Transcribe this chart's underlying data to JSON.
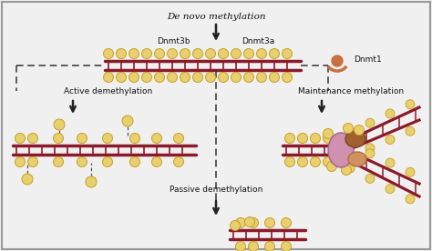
{
  "bg_color": "#f0f0f0",
  "border_color": "#999999",
  "dna_color": "#8b1a2a",
  "methyl_color": "#e8cf70",
  "methyl_edge": "#c8a020",
  "label_color": "#111111",
  "dnmt1_color": "#c87040",
  "enzyme_pink": "#d090b0",
  "enzyme_brown": "#a06030",
  "enzyme_peach": "#d09060",
  "text_labels": {
    "de_novo": "De novo methylation",
    "dnmt3b": "Dnmt3b",
    "dnmt3a": "Dnmt3a",
    "dnmt1": "Dnmt1",
    "active_demeth": "Active demethylation",
    "maintenance": "Maintenance methylation",
    "passive_demeth": "Passive demethylation"
  },
  "fig_width": 4.74,
  "fig_height": 2.76,
  "dpi": 100
}
